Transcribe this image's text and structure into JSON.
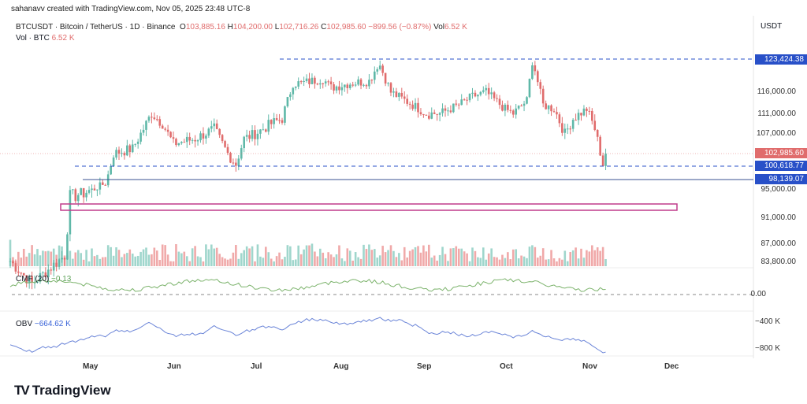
{
  "credit": "sahanavv created with TradingView.com, Nov 05, 2025 23:48 UTC-8",
  "legend": {
    "symbol": "BTCUSDT · Bitcoin / TetherUS · 1D · Binance",
    "o_label": "O",
    "o": "103,885.16",
    "h_label": "H",
    "h": "104,200.00",
    "l_label": "L",
    "l": "102,716.26",
    "c_label": "C",
    "c": "102,985.60",
    "change": "−899.56 (−0.87%)",
    "vol_label": "Vol",
    "vol": "6.52 K",
    "vol2_label": "Vol · BTC",
    "vol2": "6.52 K"
  },
  "currency": "USDT",
  "tags": {
    "top": "123,424.38",
    "last": "102,985.60",
    "mid": "100,618.77",
    "low": "98,139.07"
  },
  "cmf": {
    "label": "CMF (20)",
    "value": "−0.13",
    "zero": "0.00"
  },
  "obv": {
    "label": "OBV",
    "value": "−664.62 K",
    "t1": "−400 K",
    "t2": "−800 K"
  },
  "brand": "TradingView",
  "colors": {
    "up": "#5fb8a8",
    "down": "#e06c6c",
    "blue": "#2850c8",
    "pink": "#c03c8c"
  },
  "chart_data": {
    "type": "candlestick",
    "title": "BTCUSDT 1D",
    "x_ticks": [
      "May",
      "Jun",
      "Jul",
      "Aug",
      "Sep",
      "Oct",
      "Nov",
      "Dec"
    ],
    "y_ticks": [
      "116,000.00",
      "111,000.00",
      "107,000.00",
      "95,000.00",
      "91,000.00",
      "87,000.00",
      "83,800.00"
    ],
    "ylim": [
      83800,
      125000
    ],
    "close_path_k": [
      [
        0,
        84
      ],
      [
        8,
        80
      ],
      [
        20,
        85
      ],
      [
        22,
        94
      ],
      [
        30,
        95
      ],
      [
        35,
        97
      ],
      [
        38,
        103
      ],
      [
        45,
        104
      ],
      [
        52,
        111
      ],
      [
        56,
        109
      ],
      [
        60,
        105
      ],
      [
        68,
        106
      ],
      [
        75,
        108
      ],
      [
        80,
        103
      ],
      [
        83,
        101
      ],
      [
        86,
        106
      ],
      [
        90,
        107
      ],
      [
        96,
        109
      ],
      [
        100,
        110
      ],
      [
        104,
        118
      ],
      [
        107,
        118
      ],
      [
        115,
        119
      ],
      [
        118,
        117
      ],
      [
        125,
        118
      ],
      [
        132,
        118.5
      ],
      [
        135,
        122
      ],
      [
        136,
        122
      ],
      [
        140,
        116
      ],
      [
        148,
        113
      ],
      [
        153,
        111
      ],
      [
        158,
        111
      ],
      [
        165,
        113
      ],
      [
        170,
        115
      ],
      [
        175,
        116
      ],
      [
        182,
        112
      ],
      [
        185,
        111
      ],
      [
        190,
        114
      ],
      [
        192,
        123
      ],
      [
        193,
        121
      ],
      [
        196,
        113
      ],
      [
        200,
        112
      ],
      [
        204,
        107
      ],
      [
        207,
        110
      ],
      [
        212,
        112
      ],
      [
        215,
        108
      ],
      [
        218,
        101
      ],
      [
        219,
        103
      ]
    ],
    "horizontal_levels": [
      123424.38,
      100618.77,
      98139.07
    ],
    "zone": [
      92500,
      93500
    ]
  }
}
